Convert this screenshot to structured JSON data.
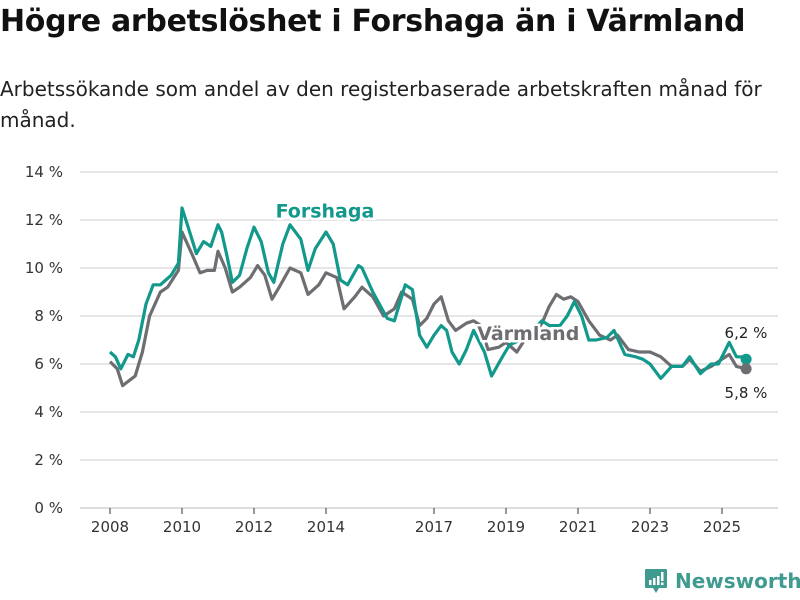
{
  "title": "Högre arbetslöshet i Forshaga än i Värmland",
  "subtitle": "Arbetssökande som andel av den registerbaserade arbetskraften månad för månad.",
  "brand": "Newsworthy",
  "colors": {
    "forshaga": "#12998c",
    "varmland": "#6e6e72",
    "grid": "#dddddd",
    "brand": "#3f9a8f"
  },
  "chart_data": {
    "type": "line",
    "title": "Högre arbetslöshet i Forshaga än i Värmland",
    "xlabel": "",
    "ylabel": "",
    "ylim": [
      0,
      14
    ],
    "xlim": [
      2007.0,
      2026.7
    ],
    "grid": true,
    "y_ticks": [
      0,
      2,
      4,
      6,
      8,
      10,
      12,
      14
    ],
    "y_tick_labels": [
      "0 %",
      "2 %",
      "4 %",
      "6 %",
      "8 %",
      "10 %",
      "12 %",
      "14 %"
    ],
    "x_ticks": [
      2008,
      2010,
      2012,
      2014,
      2017,
      2019,
      2021,
      2023,
      2025
    ],
    "x_tick_labels": [
      "2008",
      "2010",
      "2012",
      "2014",
      "2017",
      "2019",
      "2021",
      "2023",
      "2025"
    ],
    "series": [
      {
        "name": "Forshaga",
        "label_pos": [
          2012.6,
          12.1
        ],
        "end_label": "6,2 %",
        "x": [
          2008.0,
          2008.15,
          2008.3,
          2008.5,
          2008.65,
          2008.8,
          2009.0,
          2009.2,
          2009.4,
          2009.55,
          2009.7,
          2009.9,
          2010.0,
          2010.15,
          2010.4,
          2010.6,
          2010.8,
          2011.0,
          2011.1,
          2011.25,
          2011.4,
          2011.6,
          2011.8,
          2012.0,
          2012.2,
          2012.4,
          2012.55,
          2012.8,
          2013.0,
          2013.3,
          2013.5,
          2013.7,
          2014.0,
          2014.2,
          2014.4,
          2014.6,
          2014.9,
          2015.0,
          2015.3,
          2015.7,
          2015.9,
          2016.2,
          2016.4,
          2016.6,
          2016.8,
          2017.0,
          2017.2,
          2017.35,
          2017.5,
          2017.7,
          2017.9,
          2018.1,
          2018.4,
          2018.6,
          2018.9,
          2019.1,
          2019.4,
          2019.6,
          2019.8,
          2020.0,
          2020.2,
          2020.5,
          2020.7,
          2020.9,
          2021.1,
          2021.3,
          2021.5,
          2021.8,
          2022.0,
          2022.3,
          2022.6,
          2022.8,
          2023.0,
          2023.3,
          2023.6,
          2023.9,
          2024.1,
          2024.4,
          2024.7,
          2024.9,
          2025.2,
          2025.4,
          2025.55,
          2025.67
        ],
        "values": [
          6.5,
          6.3,
          5.8,
          6.4,
          6.3,
          7.0,
          8.5,
          9.3,
          9.3,
          9.5,
          9.7,
          10.2,
          12.5,
          11.8,
          10.6,
          11.1,
          10.9,
          11.8,
          11.5,
          10.5,
          9.4,
          9.7,
          10.8,
          11.7,
          11.1,
          9.8,
          9.4,
          11.0,
          11.8,
          11.2,
          9.9,
          10.8,
          11.5,
          11.0,
          9.5,
          9.3,
          10.1,
          10.0,
          9.0,
          7.9,
          7.8,
          9.3,
          9.1,
          7.2,
          6.7,
          7.2,
          7.6,
          7.4,
          6.5,
          6.0,
          6.6,
          7.4,
          6.5,
          5.5,
          6.3,
          6.8,
          7.0,
          7.3,
          7.5,
          7.8,
          7.6,
          7.6,
          8.0,
          8.6,
          8.0,
          7.0,
          7.0,
          7.1,
          7.4,
          6.4,
          6.3,
          6.2,
          6.0,
          5.4,
          5.9,
          5.9,
          6.3,
          5.6,
          6.0,
          6.0,
          6.9,
          6.3,
          6.3,
          6.2
        ]
      },
      {
        "name": "Värmland",
        "label_pos": [
          2018.2,
          7.0
        ],
        "end_label": "5,8 %",
        "x": [
          2008.0,
          2008.2,
          2008.35,
          2008.7,
          2008.9,
          2009.1,
          2009.4,
          2009.6,
          2009.9,
          2010.0,
          2010.3,
          2010.5,
          2010.7,
          2010.9,
          2011.0,
          2011.2,
          2011.4,
          2011.6,
          2011.9,
          2012.1,
          2012.3,
          2012.5,
          2012.7,
          2013.0,
          2013.3,
          2013.5,
          2013.8,
          2014.0,
          2014.3,
          2014.5,
          2014.8,
          2015.0,
          2015.3,
          2015.6,
          2015.9,
          2016.1,
          2016.4,
          2016.6,
          2016.8,
          2017.0,
          2017.2,
          2017.4,
          2017.6,
          2017.9,
          2018.1,
          2018.3,
          2018.5,
          2018.8,
          2019.0,
          2019.3,
          2019.6,
          2019.8,
          2020.0,
          2020.2,
          2020.4,
          2020.6,
          2020.8,
          2021.0,
          2021.3,
          2021.6,
          2021.9,
          2022.1,
          2022.4,
          2022.7,
          2023.0,
          2023.3,
          2023.6,
          2023.9,
          2024.1,
          2024.4,
          2024.7,
          2025.0,
          2025.2,
          2025.4,
          2025.67
        ],
        "values": [
          6.1,
          5.8,
          5.1,
          5.5,
          6.5,
          8.0,
          9.0,
          9.2,
          9.9,
          11.5,
          10.5,
          9.8,
          9.9,
          9.9,
          10.7,
          10.0,
          9.0,
          9.2,
          9.6,
          10.1,
          9.7,
          8.7,
          9.2,
          10.0,
          9.8,
          8.9,
          9.3,
          9.8,
          9.6,
          8.3,
          8.8,
          9.2,
          8.8,
          8.0,
          8.3,
          9.0,
          8.7,
          7.6,
          7.9,
          8.5,
          8.8,
          7.8,
          7.4,
          7.7,
          7.8,
          7.6,
          6.6,
          6.7,
          6.9,
          6.5,
          7.2,
          7.3,
          7.7,
          8.4,
          8.9,
          8.7,
          8.8,
          8.6,
          7.8,
          7.2,
          7.0,
          7.2,
          6.6,
          6.5,
          6.5,
          6.3,
          5.9,
          5.9,
          6.2,
          5.7,
          5.9,
          6.2,
          6.4,
          5.9,
          5.8
        ]
      }
    ]
  }
}
